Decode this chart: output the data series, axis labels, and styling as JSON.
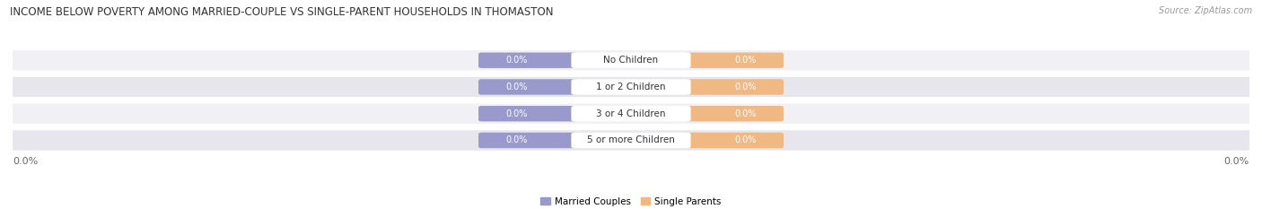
{
  "title": "INCOME BELOW POVERTY AMONG MARRIED-COUPLE VS SINGLE-PARENT HOUSEHOLDS IN THOMASTON",
  "source": "Source: ZipAtlas.com",
  "categories": [
    "No Children",
    "1 or 2 Children",
    "3 or 4 Children",
    "5 or more Children"
  ],
  "married_values": [
    0.0,
    0.0,
    0.0,
    0.0
  ],
  "single_values": [
    0.0,
    0.0,
    0.0,
    0.0
  ],
  "married_color": "#9999cc",
  "single_color": "#f0b882",
  "row_bg_even": "#f0f0f5",
  "row_bg_odd": "#e6e6ec",
  "title_fontsize": 8.5,
  "source_fontsize": 7,
  "value_fontsize": 7,
  "cat_fontsize": 7.5,
  "legend_fontsize": 7.5,
  "legend_married": "Married Couples",
  "legend_single": "Single Parents",
  "background_color": "#ffffff",
  "axis_label_color": "#666666",
  "cat_label_color": "#333333",
  "value_label_color": "#ffffff",
  "title_color": "#333333",
  "source_color": "#999999"
}
